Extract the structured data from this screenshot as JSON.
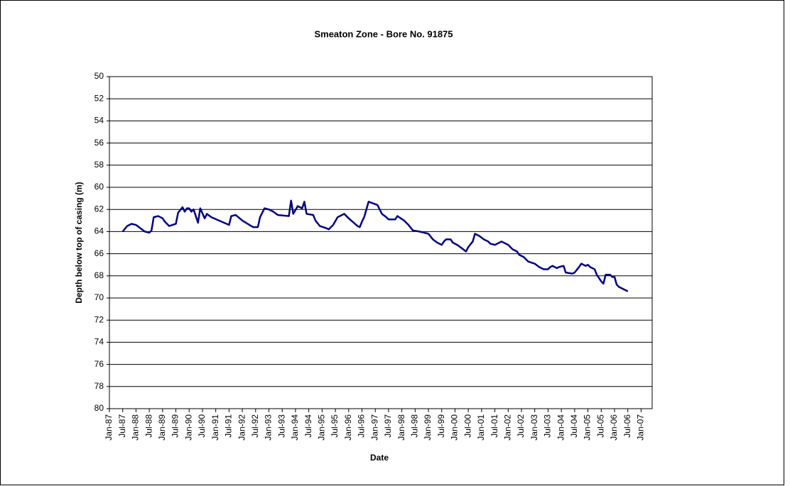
{
  "chart_data": {
    "type": "line",
    "title": "Smeaton Zone - Bore No. 91875",
    "x_label": "Date",
    "y_label": "Depth below top of casing (m)",
    "color": "#000080",
    "y_inverted": true,
    "grid": true,
    "ylim": [
      50,
      80
    ],
    "yticks": [
      50,
      52,
      54,
      56,
      58,
      60,
      62,
      64,
      66,
      68,
      70,
      72,
      74,
      76,
      78,
      80
    ],
    "xlim": [
      "1987-01",
      "2007-06"
    ],
    "xticks": [
      {
        "value": "1987-01",
        "label": "Jan-87"
      },
      {
        "value": "1987-07",
        "label": "Jul-87"
      },
      {
        "value": "1988-01",
        "label": "Jan-88"
      },
      {
        "value": "1988-07",
        "label": "Jul-88"
      },
      {
        "value": "1989-01",
        "label": "Jan-89"
      },
      {
        "value": "1989-07",
        "label": "Jul-89"
      },
      {
        "value": "1990-01",
        "label": "Jan-90"
      },
      {
        "value": "1990-07",
        "label": "Jul-90"
      },
      {
        "value": "1991-01",
        "label": "Jan-91"
      },
      {
        "value": "1991-07",
        "label": "Jul-91"
      },
      {
        "value": "1992-01",
        "label": "Jan-92"
      },
      {
        "value": "1992-07",
        "label": "Jul-92"
      },
      {
        "value": "1993-01",
        "label": "Jan-93"
      },
      {
        "value": "1993-07",
        "label": "Jul-93"
      },
      {
        "value": "1994-01",
        "label": "Jan-94"
      },
      {
        "value": "1994-07",
        "label": "Jul-94"
      },
      {
        "value": "1995-01",
        "label": "Jan-95"
      },
      {
        "value": "1995-07",
        "label": "Jul-95"
      },
      {
        "value": "1996-01",
        "label": "Jan-96"
      },
      {
        "value": "1996-07",
        "label": "Jul-96"
      },
      {
        "value": "1997-01",
        "label": "Jan-97"
      },
      {
        "value": "1997-07",
        "label": "Jul-97"
      },
      {
        "value": "1998-01",
        "label": "Jan-98"
      },
      {
        "value": "1998-07",
        "label": "Jul-98"
      },
      {
        "value": "1999-01",
        "label": "Jan-99"
      },
      {
        "value": "1999-07",
        "label": "Jul-99"
      },
      {
        "value": "2000-01",
        "label": "Jan-00"
      },
      {
        "value": "2000-07",
        "label": "Jul-00"
      },
      {
        "value": "2001-01",
        "label": "Jan-01"
      },
      {
        "value": "2001-07",
        "label": "Jul-01"
      },
      {
        "value": "2002-01",
        "label": "Jan-02"
      },
      {
        "value": "2002-07",
        "label": "Jul-02"
      },
      {
        "value": "2003-01",
        "label": "Jan-03"
      },
      {
        "value": "2003-07",
        "label": "Jul-03"
      },
      {
        "value": "2004-01",
        "label": "Jan-04"
      },
      {
        "value": "2004-07",
        "label": "Jul-04"
      },
      {
        "value": "2005-01",
        "label": "Jan-05"
      },
      {
        "value": "2005-07",
        "label": "Jul-05"
      },
      {
        "value": "2006-01",
        "label": "Jan-06"
      },
      {
        "value": "2006-07",
        "label": "Jul-06"
      },
      {
        "value": "2007-01",
        "label": "Jan-07"
      }
    ],
    "x": [
      "1987-07",
      "1987-09",
      "1987-11",
      "1988-01",
      "1988-03",
      "1988-05",
      "1988-07",
      "1988-08",
      "1988-09",
      "1988-11",
      "1989-01",
      "1989-02",
      "1989-04",
      "1989-07",
      "1989-08",
      "1989-10",
      "1989-11",
      "1989-12",
      "1990-01",
      "1990-02",
      "1990-03",
      "1990-05",
      "1990-06",
      "1990-08",
      "1990-09",
      "1990-11",
      "1991-07",
      "1991-08",
      "1991-10",
      "1992-01",
      "1992-05",
      "1992-06",
      "1992-08",
      "1992-09",
      "1992-11",
      "1993-01",
      "1993-03",
      "1993-05",
      "1993-10",
      "1993-11",
      "1993-12",
      "1994-02",
      "1994-04",
      "1994-05",
      "1994-06",
      "1994-09",
      "1994-10",
      "1994-12",
      "1995-03",
      "1995-04",
      "1995-06",
      "1995-08",
      "1995-10",
      "1995-11",
      "1996-01",
      "1996-05",
      "1996-06",
      "1996-07",
      "1996-08",
      "1996-10",
      "1997-02",
      "1997-04",
      "1997-06",
      "1997-07",
      "1997-10",
      "1997-11",
      "1998-02",
      "1998-04",
      "1998-06",
      "1998-09",
      "1998-11",
      "1999-01",
      "1999-03",
      "1999-05",
      "1999-07",
      "1999-08",
      "1999-09",
      "1999-11",
      "1999-12",
      "2000-02",
      "2000-04",
      "2000-06",
      "2000-07",
      "2000-09",
      "2000-10",
      "2000-12",
      "2001-02",
      "2001-04",
      "2001-05",
      "2001-07",
      "2001-09",
      "2001-10",
      "2002-01",
      "2002-03",
      "2002-05",
      "2002-06",
      "2002-08",
      "2002-10",
      "2003-01",
      "2003-03",
      "2003-05",
      "2003-07",
      "2003-08",
      "2003-09",
      "2003-11",
      "2003-12",
      "2004-02",
      "2004-03",
      "2004-06",
      "2004-07",
      "2004-09",
      "2004-10",
      "2004-12",
      "2005-01",
      "2005-02",
      "2005-04",
      "2005-05",
      "2005-07",
      "2005-08",
      "2005-09",
      "2005-11",
      "2005-12",
      "2006-01",
      "2006-02",
      "2006-03",
      "2006-05",
      "2006-07"
    ],
    "values": [
      64.0,
      63.5,
      63.3,
      63.4,
      63.7,
      64.0,
      64.1,
      63.9,
      62.7,
      62.6,
      62.8,
      63.1,
      63.5,
      63.3,
      62.3,
      61.8,
      62.2,
      61.9,
      61.9,
      62.2,
      62.0,
      63.2,
      61.9,
      62.8,
      62.4,
      62.7,
      63.4,
      62.6,
      62.5,
      63.0,
      63.5,
      63.6,
      63.6,
      62.7,
      61.9,
      62.0,
      62.2,
      62.5,
      62.6,
      61.2,
      62.4,
      61.7,
      61.9,
      61.3,
      62.4,
      62.5,
      63.0,
      63.5,
      63.7,
      63.8,
      63.4,
      62.7,
      62.5,
      62.4,
      62.8,
      63.5,
      63.6,
      63.1,
      62.7,
      61.3,
      61.6,
      62.4,
      62.7,
      62.9,
      62.9,
      62.6,
      63.0,
      63.4,
      63.9,
      64.0,
      64.1,
      64.2,
      64.7,
      65.0,
      65.2,
      64.9,
      64.7,
      64.7,
      65.0,
      65.2,
      65.5,
      65.8,
      65.4,
      64.9,
      64.2,
      64.4,
      64.7,
      64.9,
      65.1,
      65.2,
      65.0,
      64.9,
      65.2,
      65.6,
      65.8,
      66.1,
      66.3,
      66.7,
      66.9,
      67.2,
      67.4,
      67.4,
      67.2,
      67.1,
      67.3,
      67.2,
      67.1,
      67.7,
      67.8,
      67.7,
      67.2,
      66.9,
      67.1,
      67.0,
      67.2,
      67.4,
      67.9,
      68.5,
      68.7,
      67.9,
      67.9,
      68.1,
      68.1,
      68.8,
      69.0,
      69.2,
      69.4
    ]
  }
}
